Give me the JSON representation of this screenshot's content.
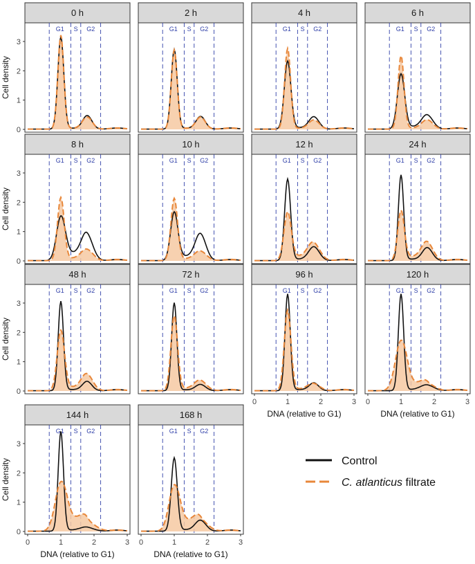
{
  "chart_data": {
    "type": "line",
    "facet_titles": [
      "0 h",
      "2 h",
      "4 h",
      "6 h",
      "8 h",
      "10 h",
      "12 h",
      "24 h",
      "48 h",
      "72 h",
      "96 h",
      "120 h",
      "144 h",
      "168 h"
    ],
    "xlabel": "DNA (relative to G1)",
    "ylabel": "Cell density",
    "xlim": [
      0,
      3
    ],
    "ylim": [
      0,
      3.4
    ],
    "x_ticks": [
      "0",
      "1",
      "2",
      "3"
    ],
    "y_ticks": [
      "0",
      "1",
      "2",
      "3"
    ],
    "phase_labels": [
      "G1",
      "S",
      "G2"
    ],
    "phase_boundaries": [
      0.65,
      1.3,
      1.6,
      2.2
    ],
    "legend": {
      "control": "Control",
      "treatment_italic": "C. atlanticus",
      "treatment_rest": " filtrate"
    },
    "series": [
      {
        "time": "0 h",
        "control": {
          "g1": 3.15,
          "g1w": 0.09,
          "g2": 0.45,
          "g2w": 0.14,
          "s": 0.03
        },
        "treatment": {
          "g1": 3.2,
          "g1w": 0.09,
          "g2": 0.4,
          "g2w": 0.15,
          "s": 0.03
        }
      },
      {
        "time": "2 h",
        "control": {
          "g1": 2.72,
          "g1w": 0.09,
          "g2": 0.42,
          "g2w": 0.14,
          "s": 0.03
        },
        "treatment": {
          "g1": 2.7,
          "g1w": 0.09,
          "g2": 0.4,
          "g2w": 0.14,
          "s": 0.03
        }
      },
      {
        "time": "4 h",
        "control": {
          "g1": 2.32,
          "g1w": 0.1,
          "g2": 0.4,
          "g2w": 0.15,
          "s": 0.05
        },
        "treatment": {
          "g1": 2.75,
          "g1w": 0.09,
          "g2": 0.3,
          "g2w": 0.16,
          "s": 0.03
        }
      },
      {
        "time": "6 h",
        "control": {
          "g1": 1.88,
          "g1w": 0.11,
          "g2": 0.45,
          "g2w": 0.17,
          "s": 0.08
        },
        "treatment": {
          "g1": 2.5,
          "g1w": 0.09,
          "g2": 0.3,
          "g2w": 0.17,
          "s": 0.04
        }
      },
      {
        "time": "8 h",
        "control": {
          "g1": 1.5,
          "g1w": 0.13,
          "g2": 0.82,
          "g2w": 0.17,
          "s": 0.25
        },
        "treatment": {
          "g1": 2.15,
          "g1w": 0.1,
          "g2": 0.35,
          "g2w": 0.18,
          "s": 0.08
        }
      },
      {
        "time": "10 h",
        "control": {
          "g1": 1.65,
          "g1w": 0.11,
          "g2": 0.85,
          "g2w": 0.16,
          "s": 0.15
        },
        "treatment": {
          "g1": 2.12,
          "g1w": 0.1,
          "g2": 0.3,
          "g2w": 0.18,
          "s": 0.06
        }
      },
      {
        "time": "12 h",
        "control": {
          "g1": 2.78,
          "g1w": 0.09,
          "g2": 0.45,
          "g2w": 0.16,
          "s": 0.05
        },
        "treatment": {
          "g1": 1.65,
          "g1w": 0.11,
          "g2": 0.55,
          "g2w": 0.18,
          "s": 0.15
        }
      },
      {
        "time": "24 h",
        "control": {
          "g1": 2.92,
          "g1w": 0.08,
          "g2": 0.42,
          "g2w": 0.15,
          "s": 0.05
        },
        "treatment": {
          "g1": 1.7,
          "g1w": 0.1,
          "g2": 0.58,
          "g2w": 0.17,
          "s": 0.14
        }
      },
      {
        "time": "48 h",
        "control": {
          "g1": 3.05,
          "g1w": 0.08,
          "g2": 0.3,
          "g2w": 0.14,
          "s": 0.04
        },
        "treatment": {
          "g1": 2.05,
          "g1w": 0.11,
          "g2": 0.52,
          "g2w": 0.17,
          "s": 0.12
        }
      },
      {
        "time": "72 h",
        "control": {
          "g1": 3.0,
          "g1w": 0.08,
          "g2": 0.2,
          "g2w": 0.15,
          "s": 0.03
        },
        "treatment": {
          "g1": 2.55,
          "g1w": 0.1,
          "g2": 0.32,
          "g2w": 0.18,
          "s": 0.08
        }
      },
      {
        "time": "96 h",
        "control": {
          "g1": 3.3,
          "g1w": 0.08,
          "g2": 0.25,
          "g2w": 0.14,
          "s": 0.04
        },
        "treatment": {
          "g1": 2.75,
          "g1w": 0.1,
          "g2": 0.22,
          "g2w": 0.18,
          "s": 0.06
        }
      },
      {
        "time": "120 h",
        "control": {
          "g1": 3.3,
          "g1w": 0.08,
          "g2": 0.18,
          "g2w": 0.2,
          "s": 0.04
        },
        "treatment": {
          "g1": 1.7,
          "g1w": 0.17,
          "g2": 0.22,
          "g2w": 0.22,
          "s": 0.2
        }
      },
      {
        "time": "144 h",
        "control": {
          "g1": 3.4,
          "g1w": 0.08,
          "g2": 0.12,
          "g2w": 0.2,
          "s": 0.04
        },
        "treatment": {
          "g1": 1.65,
          "g1w": 0.17,
          "g2": 0.3,
          "g2w": 0.25,
          "s": 0.35
        }
      },
      {
        "time": "168 h",
        "control": {
          "g1": 2.5,
          "g1w": 0.09,
          "g2": 0.35,
          "g2w": 0.16,
          "s": 0.05
        },
        "treatment": {
          "g1": 1.55,
          "g1w": 0.16,
          "g2": 0.35,
          "g2w": 0.22,
          "s": 0.3
        }
      }
    ]
  }
}
